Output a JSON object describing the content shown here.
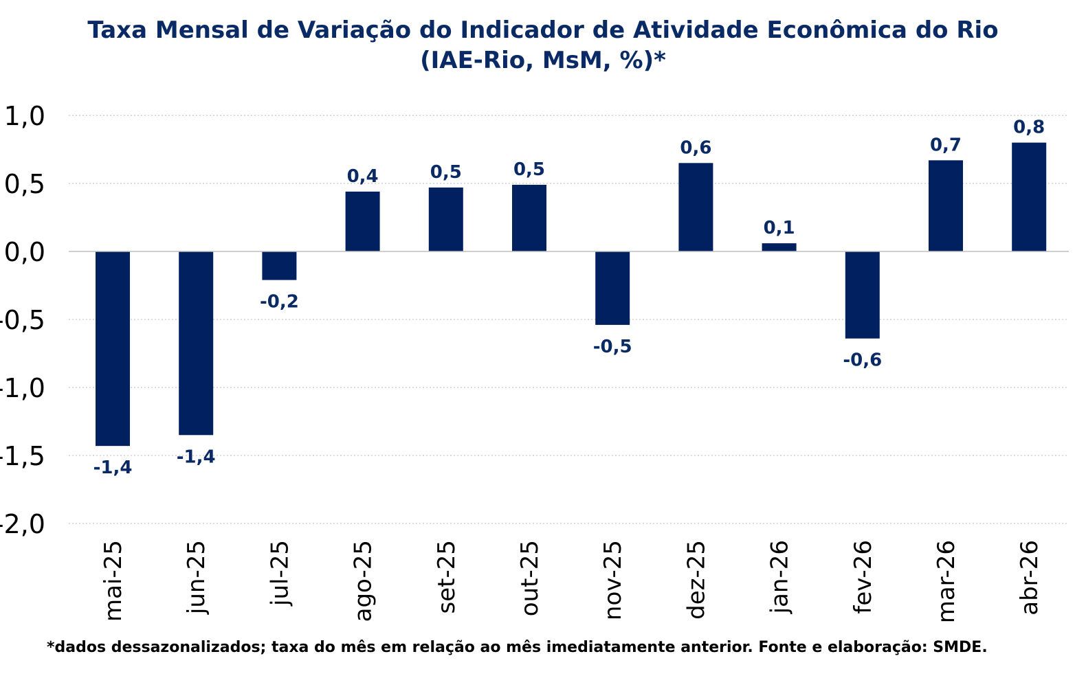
{
  "chart_data": {
    "type": "bar",
    "title": "Taxa Mensal de Variação do Indicador de Atividade Econômica do Rio",
    "subtitle": "(IAE-Rio, MsM, %)*",
    "categories": [
      "mai-25",
      "jun-25",
      "jul-25",
      "ago-25",
      "set-25",
      "out-25",
      "nov-25",
      "dez-25",
      "jan-26",
      "fev-26",
      "mar-26",
      "abr-26"
    ],
    "values": [
      -1.43,
      -1.35,
      -0.21,
      0.44,
      0.47,
      0.49,
      -0.54,
      0.65,
      0.06,
      -0.64,
      0.67,
      0.8
    ],
    "data_labels": [
      "-1,4",
      "-1,4",
      "-0,2",
      "0,4",
      "0,5",
      "0,5",
      "-0,5",
      "0,6",
      "0,1",
      "-0,6",
      "0,7",
      "0,8"
    ],
    "ylim": [
      -2.0,
      1.0
    ],
    "yticks": [
      1.0,
      0.5,
      0.0,
      -0.5,
      -1.0,
      -1.5,
      -2.0
    ],
    "ytick_labels": [
      "1,0",
      "0,5",
      "0,0",
      "-0,5",
      "-1,0",
      "-1,5",
      "-2,0"
    ],
    "xlabel": "",
    "ylabel": "",
    "grid": true,
    "legend": "none",
    "bar_color": "#002060",
    "label_color": "#0a2a66"
  },
  "footnote": "*dados dessazonalizados; taxa do mês em relação ao mês imediatamente anterior. Fonte e elaboração: SMDE."
}
